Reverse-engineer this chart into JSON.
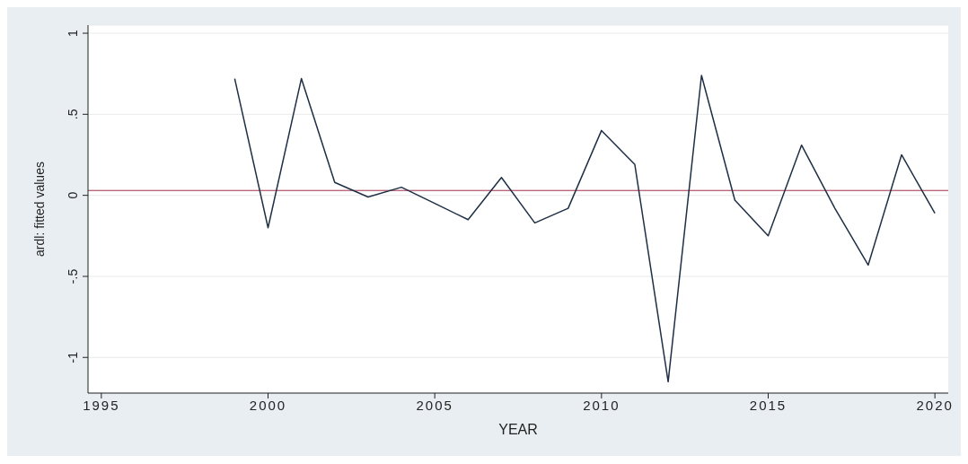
{
  "chart_data": {
    "type": "line",
    "xlabel": "YEAR",
    "ylabel": "ardl: fitted values",
    "x": [
      1999,
      2000,
      2001,
      2002,
      2003,
      2004,
      2005,
      2006,
      2007,
      2008,
      2009,
      2010,
      2011,
      2012,
      2013,
      2014,
      2015,
      2016,
      2017,
      2018,
      2019,
      2020
    ],
    "series": [
      {
        "color": "#1f2f45",
        "values": [
          0.72,
          -0.2,
          0.72,
          0.08,
          -0.01,
          0.05,
          -0.05,
          -0.15,
          0.11,
          -0.17,
          -0.08,
          0.4,
          0.19,
          -1.15,
          0.74,
          -0.03,
          -0.25,
          0.31,
          -0.08,
          -0.43,
          0.25,
          -0.11
        ]
      }
    ],
    "xlim": [
      1994.6,
      2020.4
    ],
    "xticks": [
      1995,
      2000,
      2005,
      2010,
      2015,
      2020
    ],
    "ylim": [
      -1.22,
      1.05
    ],
    "yticks": [
      {
        "value": -1,
        "label": "-1"
      },
      {
        "value": -0.5,
        "label": "-.5"
      },
      {
        "value": 0,
        "label": "0"
      },
      {
        "value": 0.5,
        "label": ".5"
      },
      {
        "value": 1,
        "label": "1"
      }
    ],
    "ref_lines": [
      {
        "axis": "y",
        "value": 0.03,
        "color": "#a0304a"
      }
    ],
    "grid": "y",
    "marker": "none",
    "line_style": "solid"
  }
}
